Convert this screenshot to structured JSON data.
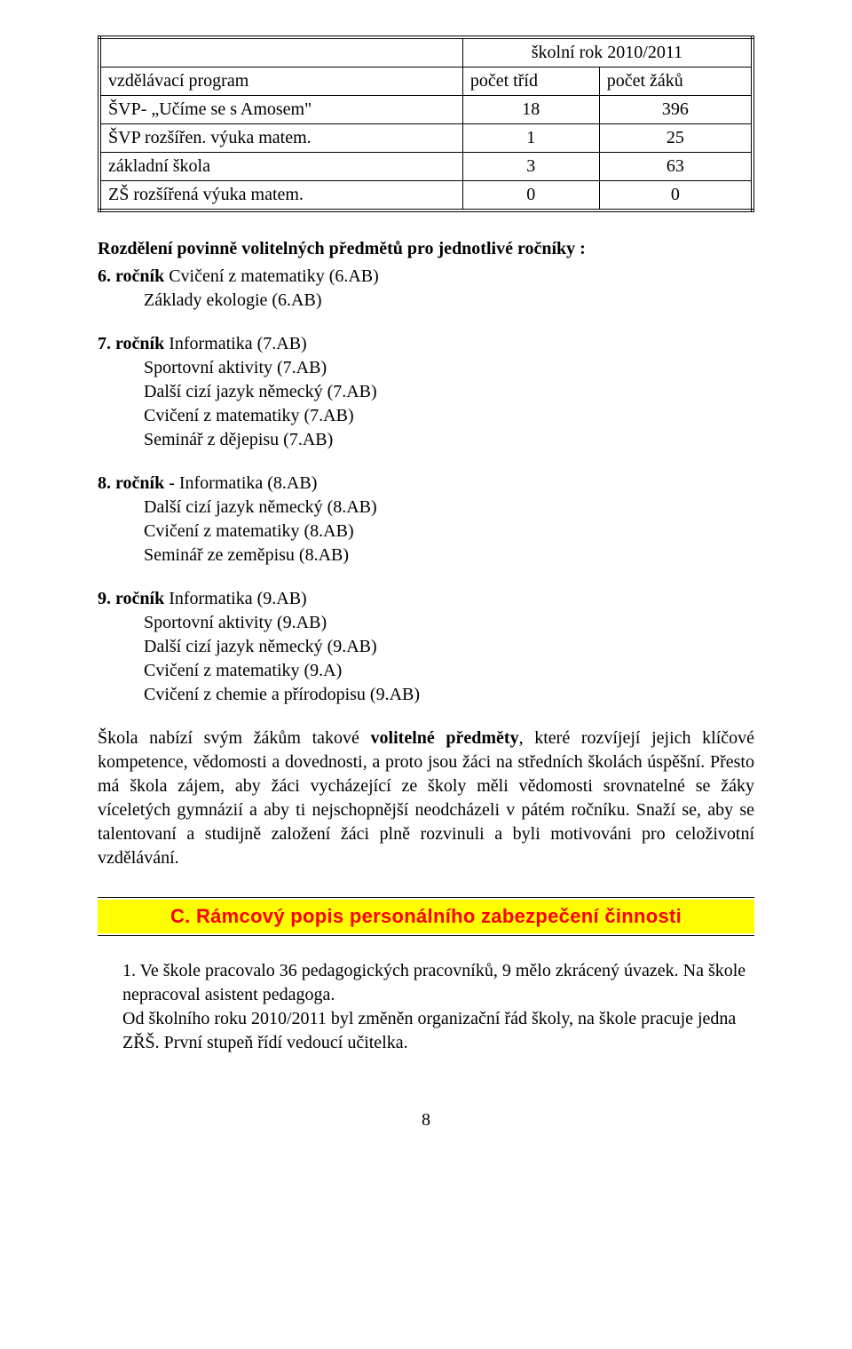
{
  "table": {
    "span_header": "školní rok 2010/2011",
    "col1": "vzdělávací program",
    "col2": "počet tříd",
    "col3": "počet žáků",
    "rows": [
      {
        "label": "ŠVP- „Učíme se s Amosem\"",
        "c2": "18",
        "c3": "396"
      },
      {
        "label": "ŠVP rozšířen. výuka matem.",
        "c2": "1",
        "c3": "25"
      },
      {
        "label": "základní škola",
        "c2": "3",
        "c3": "63"
      },
      {
        "label": "ZŠ rozšířená výuka matem.",
        "c2": "0",
        "c3": "0"
      }
    ]
  },
  "intro": "Rozdělení povinně volitelných předmětů pro jednotlivé ročníky :",
  "grades": {
    "g6": {
      "head": "6. ročník",
      "head_tail": " Cvičení z matematiky (6.AB)",
      "items": [
        "Základy ekologie (6.AB)"
      ]
    },
    "g7": {
      "head": "7. ročník",
      "head_tail": " Informatika (7.AB)",
      "items": [
        "Sportovní aktivity (7.AB)",
        "Další cizí jazyk německý (7.AB)",
        "Cvičení z matematiky (7.AB)",
        "Seminář z dějepisu (7.AB)"
      ]
    },
    "g8": {
      "head": "8. ročník",
      "head_tail": " -  Informatika (8.AB)",
      "items": [
        "Další cizí jazyk německý (8.AB)",
        "Cvičení z matematiky (8.AB)",
        "Seminář ze zeměpisu (8.AB)"
      ]
    },
    "g9": {
      "head": "9. ročník",
      "head_tail": "  Informatika (9.AB)",
      "items": [
        "Sportovní aktivity (9.AB)",
        "Další cizí jazyk německý (9.AB)",
        "Cvičení z matematiky (9.A)",
        "Cvičení z chemie a přírodopisu (9.AB)"
      ]
    }
  },
  "body_para": "Škola nabízí svým žákům takové volitelné předměty, které rozvíjejí jejich klíčové kompetence, vědomosti a dovednosti, a proto jsou žáci na středních školách úspěšní. Přesto má škola  zájem, aby žáci vycházející ze školy měli vědomosti srovnatelné se žáky víceletých gymnázií a aby ti nejschopnější neodcházeli v pátém ročníku. Snaží se, aby se talentovaní a studijně založení žáci plně rozvinuli a byli motivováni pro celoživotní vzdělávání.",
  "body_para_bold_phrase": "volitelné předměty",
  "banner": "C. Rámcový popis personálního zabezpečení činnosti",
  "after_banner_p1": "1. Ve škole pracovalo 36 pedagogických pracovníků, 9 mělo zkrácený úvazek. Na škole nepracoval asistent pedagoga.",
  "after_banner_p2": "Od školního roku 2010/2011 byl změněn organizační řád školy, na škole pracuje jedna ZŘŠ. První stupeň řídí vedoucí učitelka.",
  "page_number": "8"
}
